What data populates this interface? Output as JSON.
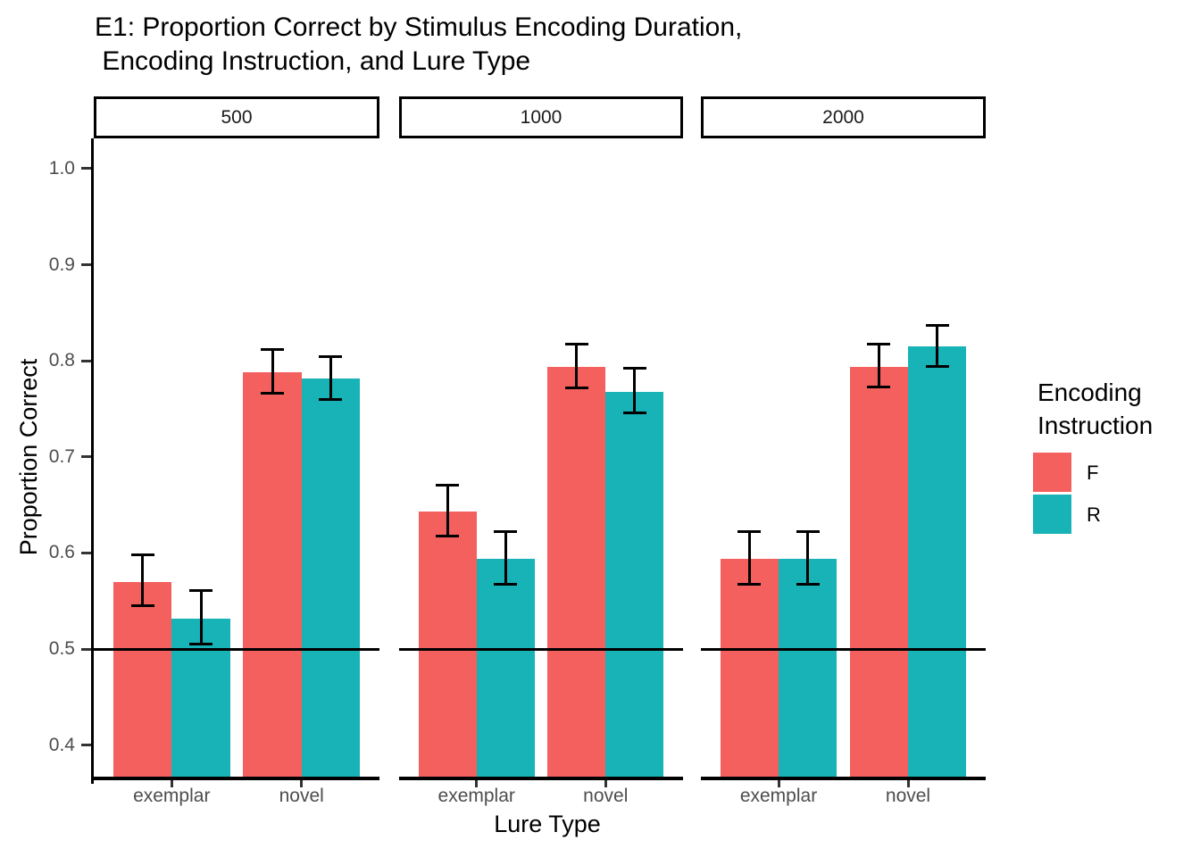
{
  "title": {
    "line1": "E1: Proportion Correct by Stimulus Encoding Duration,",
    "line2": " Encoding Instruction, and Lure Type"
  },
  "legend": {
    "title_line1": "Encoding",
    "title_line2": "Instruction",
    "items": [
      {
        "label": "F",
        "color": "#F3605E"
      },
      {
        "label": "R",
        "color": "#17B3B6"
      }
    ]
  },
  "chart_data": {
    "type": "bar",
    "title": "E1: Proportion Correct by Stimulus Encoding Duration,\n Encoding Instruction, and Lure Type",
    "facet_variable": "Stimulus Encoding Duration",
    "xlabel": "Lure Type",
    "ylabel": "Proportion Correct",
    "categories": [
      "exemplar",
      "novel"
    ],
    "yticks": [
      1.0,
      0.9,
      0.8,
      0.7,
      0.6,
      0.5,
      0.4
    ],
    "ylim": [
      0.3635,
      1.0315
    ],
    "ref_line": 0.5,
    "grid": "off",
    "legend_title": "Encoding Instruction",
    "legend_position": "right",
    "facets": [
      {
        "label": "500",
        "series": [
          {
            "name": "F",
            "values": [
              0.57,
              0.788
            ],
            "ci_low": [
              0.545,
              0.766
            ],
            "ci_high": [
              0.598,
              0.812
            ]
          },
          {
            "name": "R",
            "values": [
              0.532,
              0.782
            ],
            "ci_low": [
              0.505,
              0.76
            ],
            "ci_high": [
              0.561,
              0.804
            ]
          }
        ]
      },
      {
        "label": "1000",
        "series": [
          {
            "name": "F",
            "values": [
              0.643,
              0.794
            ],
            "ci_low": [
              0.618,
              0.772
            ],
            "ci_high": [
              0.671,
              0.817
            ]
          },
          {
            "name": "R",
            "values": [
              0.594,
              0.768
            ],
            "ci_low": [
              0.567,
              0.746
            ],
            "ci_high": [
              0.622,
              0.792
            ]
          }
        ]
      },
      {
        "label": "2000",
        "series": [
          {
            "name": "F",
            "values": [
              0.594,
              0.794
            ],
            "ci_low": [
              0.567,
              0.773
            ],
            "ci_high": [
              0.622,
              0.817
            ]
          },
          {
            "name": "R",
            "values": [
              0.594,
              0.815
            ],
            "ci_low": [
              0.567,
              0.794
            ],
            "ci_high": [
              0.622,
              0.837
            ]
          }
        ]
      }
    ]
  }
}
